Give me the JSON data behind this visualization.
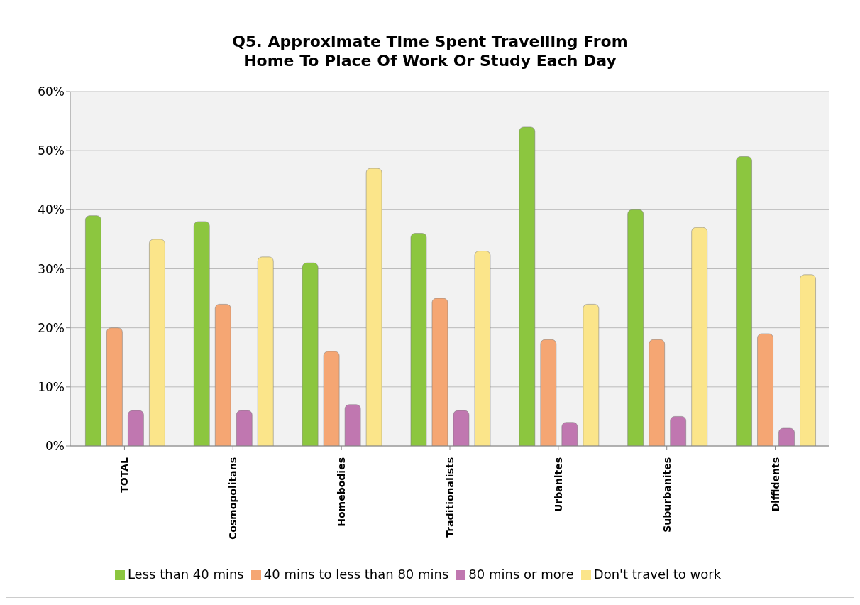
{
  "chart_data": {
    "type": "bar",
    "title": "Q5. Approximate Time Spent Travelling From Home To Place Of Work Or Study Each Day",
    "categories": [
      "TOTAL",
      "Cosmopolitans",
      "Homebodies",
      "Traditionalists",
      "Urbanites",
      "Suburbanites",
      "Diffidents"
    ],
    "series": [
      {
        "name": "Less than 40 mins",
        "color": "#8cc63f",
        "values": [
          39,
          38,
          31,
          36,
          54,
          40,
          49
        ]
      },
      {
        "name": "40 mins to less than 80 mins",
        "color": "#f5a673",
        "values": [
          20,
          24,
          16,
          25,
          18,
          18,
          19
        ]
      },
      {
        "name": "80 mins or more",
        "color": "#c077b0",
        "values": [
          6,
          6,
          7,
          6,
          4,
          5,
          3
        ]
      },
      {
        "name": "Don't travel to work",
        "color": "#fbe58a",
        "values": [
          35,
          32,
          47,
          33,
          24,
          37,
          29
        ]
      }
    ],
    "ylim": [
      0,
      60
    ],
    "yticks": [
      {
        "value": 0,
        "label": "0%"
      },
      {
        "value": 10,
        "label": "10%"
      },
      {
        "value": 20,
        "label": "20%"
      },
      {
        "value": 30,
        "label": "30%"
      },
      {
        "value": 40,
        "label": "40%"
      },
      {
        "value": 50,
        "label": "50%"
      },
      {
        "value": 60,
        "label": "60%"
      }
    ],
    "grid": "y",
    "legend": "bottom"
  }
}
